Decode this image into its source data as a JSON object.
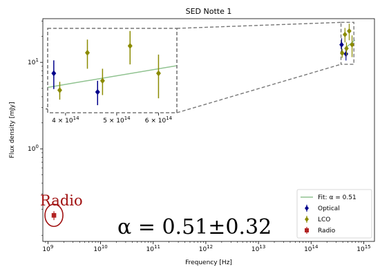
{
  "chart_data": {
    "type": "scatter",
    "title": "SED Notte 1",
    "xlabel": "Frequency [Hz]",
    "ylabel": "Flux density [mJy]",
    "xscale": "log",
    "yscale": "log",
    "xlim": [
      800000000,
      1600000000000000
    ],
    "ylim": [
      0.085,
      32
    ],
    "x_ticks": [
      {
        "value": 1000000000,
        "base": "10",
        "exp": "9"
      },
      {
        "value": 10000000000,
        "base": "10",
        "exp": "10"
      },
      {
        "value": 100000000000,
        "base": "10",
        "exp": "11"
      },
      {
        "value": 1000000000000,
        "base": "10",
        "exp": "12"
      },
      {
        "value": 10000000000000,
        "base": "10",
        "exp": "13"
      },
      {
        "value": 100000000000000,
        "base": "10",
        "exp": "14"
      },
      {
        "value": 1000000000000000,
        "base": "10",
        "exp": "15"
      }
    ],
    "y_ticks": [
      {
        "value": 1,
        "base": "10",
        "exp": "0"
      },
      {
        "value": 10,
        "base": "10",
        "exp": "1"
      }
    ],
    "series": [
      {
        "name": "Optical",
        "color": "#00008b",
        "marker": "diamond",
        "points": [
          {
            "x": 380000000000000,
            "y": 16.0,
            "err": 3.0
          },
          {
            "x": 460000000000000,
            "y": 12.5,
            "err": 2.0
          }
        ]
      },
      {
        "name": "LCO",
        "color": "#8b8b00",
        "marker": "diamond",
        "points": [
          {
            "x": 390000000000000,
            "y": 12.8,
            "err": 1.5
          },
          {
            "x": 440000000000000,
            "y": 21.0,
            "err": 4.0
          },
          {
            "x": 470000000000000,
            "y": 14.5,
            "err": 2.5
          },
          {
            "x": 530000000000000,
            "y": 23.0,
            "err": 5.0
          },
          {
            "x": 600000000000000,
            "y": 16.0,
            "err": 4.5
          }
        ]
      },
      {
        "name": "Radio",
        "color": "#b22222",
        "marker": "square",
        "points": [
          {
            "x": 1300000000,
            "y": 0.17,
            "err": 0.02
          }
        ]
      }
    ],
    "fit": {
      "label": "Fit: α = 0.51",
      "alpha": 0.51,
      "color": "#8fc28f",
      "x_range": [
        110000000000000,
        680000000000000
      ],
      "norm_x": 600000000000000,
      "norm_y": 17.0
    },
    "inset": {
      "xlim": [
        370000000000000,
        650000000000000
      ],
      "ylim": [
        9.5,
        29
      ],
      "x_ticks": [
        {
          "value": 400000000000000,
          "mant": "4 × 10",
          "exp": "14"
        },
        {
          "value": 500000000000000,
          "mant": "5 × 10",
          "exp": "14"
        },
        {
          "value": 600000000000000,
          "mant": "6 × 10",
          "exp": "14"
        }
      ],
      "y_ticks": [
        {
          "value": 10
        }
      ],
      "zoom_box": {
        "xlim": [
          370000000000000,
          650000000000000
        ],
        "ylim": [
          9.5,
          29
        ]
      }
    },
    "legend": {
      "placement": "lower-right",
      "entries": [
        "Fit: α = 0.51",
        "Optical",
        "LCO",
        "Radio"
      ]
    },
    "annotations": {
      "radio_label": "Radio",
      "alpha_text": "α = 0.51±0.32"
    }
  }
}
